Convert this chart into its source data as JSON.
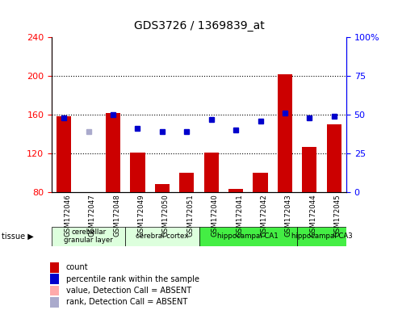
{
  "title": "GDS3726 / 1369839_at",
  "samples": [
    "GSM172046",
    "GSM172047",
    "GSM172048",
    "GSM172049",
    "GSM172050",
    "GSM172051",
    "GSM172040",
    "GSM172041",
    "GSM172042",
    "GSM172043",
    "GSM172044",
    "GSM172045"
  ],
  "counts": [
    158,
    80,
    162,
    121,
    88,
    100,
    121,
    83,
    100,
    202,
    127,
    150
  ],
  "ranks": [
    48,
    39,
    50,
    41,
    39,
    39,
    47,
    40,
    46,
    51,
    48,
    49
  ],
  "absent_mask": [
    false,
    true,
    false,
    false,
    false,
    false,
    false,
    false,
    false,
    false,
    false,
    false
  ],
  "ylim_left": [
    80,
    240
  ],
  "ylim_right": [
    0,
    100
  ],
  "yticks_left": [
    80,
    120,
    160,
    200,
    240
  ],
  "yticks_right": [
    0,
    25,
    50,
    75,
    100
  ],
  "tissue_groups": [
    {
      "label": "cerebellar\ngranular layer",
      "start": 0,
      "end": 3,
      "light": true
    },
    {
      "label": "cerebral cortex",
      "start": 3,
      "end": 6,
      "light": true
    },
    {
      "label": "hippocampal CA1",
      "start": 6,
      "end": 10,
      "light": false
    },
    {
      "label": "hippocampal CA3",
      "start": 10,
      "end": 12,
      "light": false
    }
  ],
  "bar_color": "#cc0000",
  "bar_absent_color": "#ffaaaa",
  "rank_color": "#0000cc",
  "rank_absent_color": "#aaaacc",
  "tissue_light_color": "#ddffdd",
  "tissue_dark_color": "#44ee44",
  "dotted_line_color": "#000000"
}
